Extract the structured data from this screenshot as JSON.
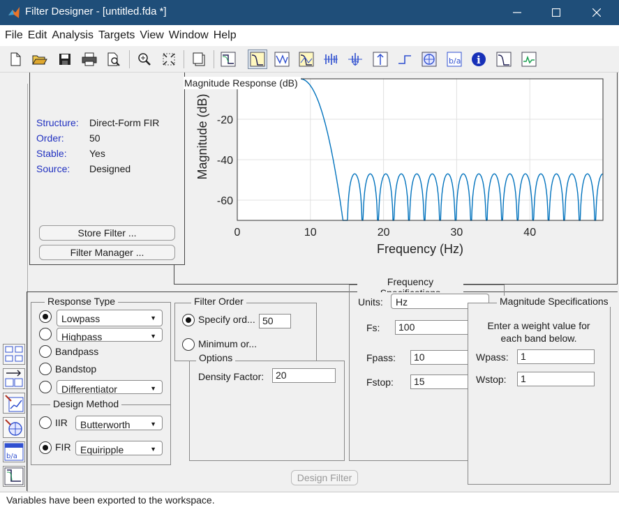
{
  "window": {
    "title": "Filter Designer -  [untitled.fda *]"
  },
  "menu": [
    "File",
    "Edit",
    "Analysis",
    "Targets",
    "View",
    "Window",
    "Help"
  ],
  "toolbar_icons": [
    "new-icon",
    "open-icon",
    "save-icon",
    "print-icon",
    "print-preview-icon",
    "zoom-in-icon",
    "full-view-icon",
    "new-figure-icon",
    "filter-specs-icon",
    "magnitude-response-icon",
    "phase-response-icon",
    "mag-phase-icon",
    "group-delay-icon",
    "phase-delay-icon",
    "impulse-response-icon",
    "step-response-icon",
    "pole-zero-icon",
    "coefficients-icon",
    "info-icon",
    "round-off-noise-icon",
    "magnitude-estimate-icon"
  ],
  "info": {
    "structure_label": "Structure:",
    "structure_value": "Direct-Form FIR",
    "order_label": "Order:",
    "order_value": "50",
    "stable_label": "Stable:",
    "stable_value": "Yes",
    "source_label": "Source:",
    "source_value": "Designed",
    "store_filter": "Store Filter ...",
    "filter_manager": "Filter Manager ..."
  },
  "chart_data": {
    "type": "line",
    "title": "Magnitude Response (dB)",
    "xlabel": "Frequency (Hz)",
    "ylabel": "Magnitude (dB)",
    "xlim": [
      0,
      50
    ],
    "ylim": [
      -70,
      0
    ],
    "xticks": [
      0,
      10,
      20,
      30,
      40
    ],
    "yticks": [
      -20,
      -40,
      -60
    ],
    "grid": true,
    "passband_edge_hz": 10,
    "stopband_edge_hz": 15,
    "stopband_ripple_db": -47,
    "series": [
      {
        "name": "Magnitude",
        "color": "#0072bd"
      }
    ]
  },
  "response": {
    "title": "Response Type",
    "lowpass": "Lowpass",
    "highpass": "Highpass",
    "bandpass": "Bandpass",
    "bandstop": "Bandstop",
    "differentiator": "Differentiator",
    "design_title": "Design Method",
    "iir_label": "IIR",
    "iir_value": "Butterworth",
    "fir_label": "FIR",
    "fir_value": "Equiripple"
  },
  "filter_order": {
    "title": "Filter Order",
    "specify_label": "Specify ord...",
    "specify_value": "50",
    "minimum_label": "Minimum or..."
  },
  "options": {
    "title": "Options",
    "density_label": "Density Factor:",
    "density_value": "20"
  },
  "frequency": {
    "title": "Frequency Specifications",
    "units_label": "Units:",
    "units_value": "Hz",
    "fs_label": "Fs:",
    "fs_value": "100",
    "fpass_label": "Fpass:",
    "fpass_value": "10",
    "fstop_label": "Fstop:",
    "fstop_value": "15"
  },
  "magnitude": {
    "title": "Magnitude Specifications",
    "note": "Enter a weight value for each band below.",
    "wpass_label": "Wpass:",
    "wpass_value": "1",
    "wstop_label": "Wstop:",
    "wstop_value": "1"
  },
  "design_button": "Design Filter",
  "status": "Variables have been exported to the workspace."
}
